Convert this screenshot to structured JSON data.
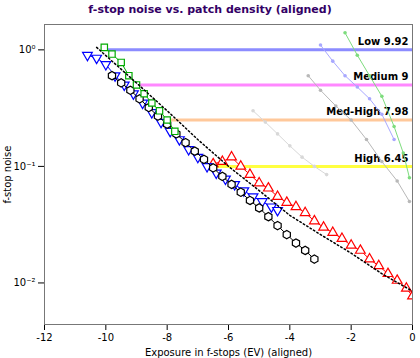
{
  "chart_data": {
    "type": "line",
    "title": "f-stop noise vs. patch density (aligned)",
    "x_label": "Exposure in f-stops (EV) (aligned)",
    "y_label": "f-stop noise",
    "log": "y",
    "grid": false,
    "xlim": [
      -12,
      0
    ],
    "xticks": [
      -12,
      -10,
      -8,
      -6,
      -4,
      -2,
      0
    ],
    "ylim": [
      0.0044,
      1.65
    ],
    "yticks": [
      {
        "value": 0.01,
        "label": "10⁻²"
      },
      {
        "value": 0.1,
        "label": "10⁻¹"
      },
      {
        "value": 1,
        "label": "10⁰"
      }
    ],
    "series": [
      {
        "name": "Low 9.92",
        "type": "threshold",
        "color": "#8c8cff",
        "x": [
          -9.92,
          0
        ],
        "values": [
          1,
          1
        ]
      },
      {
        "name": "Medium 9",
        "type": "threshold",
        "color": "#ff88ff",
        "x": [
          -9,
          0
        ],
        "values": [
          0.5,
          0.5
        ]
      },
      {
        "name": "Med-High 7.98",
        "type": "threshold",
        "color": "#ffc89a",
        "x": [
          -7.98,
          0
        ],
        "values": [
          0.25,
          0.25
        ]
      },
      {
        "name": "High 6.45",
        "type": "threshold",
        "color": "#ffff40",
        "x": [
          -6.45,
          0
        ],
        "values": [
          0.1,
          0.1
        ]
      },
      {
        "color": "#a8a8ff",
        "marker": "dot",
        "line_style": "solid",
        "x": [
          -3.0,
          -2.6,
          -2.2,
          -1.8,
          -1.4,
          -1.0,
          -0.6
        ],
        "values": [
          1.1,
          0.8,
          0.6,
          0.48,
          0.38,
          0.28,
          0.17
        ]
      },
      {
        "color": "#7ddc7d",
        "marker": "dot",
        "line_style": "solid",
        "x": [
          -2.2,
          -1.8,
          -1.4,
          -1.0,
          -0.6,
          -0.3,
          -0.1
        ],
        "values": [
          1.4,
          0.9,
          0.6,
          0.4,
          0.22,
          0.13,
          0.08
        ]
      },
      {
        "color": "#b8b8b8",
        "marker": "dot",
        "line_style": "solid",
        "x": [
          -3.4,
          -3.0,
          -2.5,
          -2.0,
          -1.5,
          -1.0,
          -0.5,
          -0.1
        ],
        "values": [
          0.6,
          0.45,
          0.33,
          0.25,
          0.17,
          0.11,
          0.075,
          0.05
        ]
      },
      {
        "color": "#d8d8d8",
        "marker": "dot",
        "line_style": "solid",
        "x": [
          -5.2,
          -4.8,
          -4.4,
          -4.0,
          -3.6,
          -3.2,
          -2.8
        ],
        "values": [
          0.3,
          0.24,
          0.19,
          0.15,
          0.12,
          0.1,
          0.085
        ]
      },
      {
        "color": "#ff0000",
        "marker": "triangle",
        "line_style": "solid",
        "x": [
          -6.5,
          -6.2,
          -5.9,
          -5.6,
          -5.3,
          -5.0,
          -4.7,
          -4.4,
          -4.1,
          -3.8,
          -3.5,
          -3.2,
          -2.9,
          -2.6,
          -2.3,
          -2.0,
          -1.7,
          -1.4,
          -1.1,
          -0.8,
          -0.5,
          -0.2,
          0
        ],
        "values": [
          0.105,
          0.11,
          0.12,
          0.1,
          0.085,
          0.072,
          0.065,
          0.055,
          0.049,
          0.045,
          0.04,
          0.034,
          0.03,
          0.027,
          0.024,
          0.021,
          0.019,
          0.016,
          0.014,
          0.012,
          0.0105,
          0.009,
          0.0077
        ]
      },
      {
        "color": "#0000ff",
        "marker": "triangle_down",
        "line_style": "solid",
        "x": [
          -10.6,
          -10.3,
          -10.0,
          -9.7,
          -9.4,
          -9.1,
          -8.8,
          -8.5,
          -8.2,
          -7.9,
          -7.6,
          -7.3,
          -7.0,
          -6.7,
          -6.4,
          -6.1,
          -5.8,
          -5.5,
          -5.2,
          -4.9,
          -4.6,
          -4.4
        ],
        "values": [
          0.9,
          0.85,
          0.75,
          0.6,
          0.5,
          0.42,
          0.35,
          0.29,
          0.24,
          0.2,
          0.17,
          0.14,
          0.12,
          0.1,
          0.088,
          0.078,
          0.07,
          0.062,
          0.055,
          0.05,
          0.045,
          0.042
        ]
      },
      {
        "color": "#000000",
        "marker": "hexagon",
        "line_style": "solid",
        "x": [
          -9.8,
          -9.5,
          -9.2,
          -8.9,
          -8.6,
          -8.3,
          -8.0,
          -7.7,
          -7.4,
          -7.1,
          -6.8,
          -6.5,
          -6.2,
          -5.9,
          -5.6,
          -5.3,
          -5.0,
          -4.7,
          -4.4,
          -4.1,
          -3.8,
          -3.5,
          -3.2
        ],
        "values": [
          0.6,
          0.52,
          0.45,
          0.38,
          0.32,
          0.27,
          0.23,
          0.19,
          0.16,
          0.135,
          0.115,
          0.097,
          0.082,
          0.07,
          0.06,
          0.051,
          0.044,
          0.037,
          0.031,
          0.026,
          0.022,
          0.019,
          0.016
        ]
      },
      {
        "color": "#00aa00",
        "marker": "square",
        "line_style": "solid",
        "x": [
          -10.05,
          -9.8,
          -9.5,
          -9.25,
          -9.0,
          -8.75,
          -8.5,
          -8.25,
          -8.0,
          -7.75
        ],
        "values": [
          1.05,
          0.92,
          0.78,
          0.6,
          0.5,
          0.42,
          0.35,
          0.3,
          0.25,
          0.2
        ]
      },
      {
        "color": "#000000",
        "marker": "none",
        "line_style": "dotted",
        "x": [
          -10.3,
          -9,
          -8,
          -7,
          -6,
          -5,
          -4,
          -3,
          -2,
          -1,
          0
        ],
        "values": [
          1.05,
          0.52,
          0.3,
          0.17,
          0.1,
          0.062,
          0.038,
          0.026,
          0.018,
          0.012,
          0.0085
        ]
      }
    ]
  }
}
